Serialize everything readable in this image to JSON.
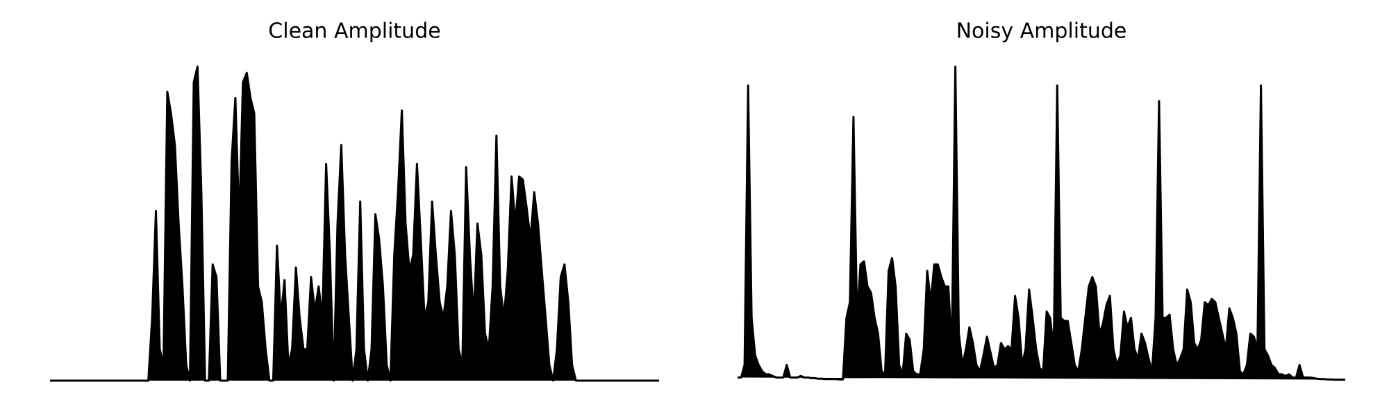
{
  "chart_data": [
    {
      "type": "area",
      "title": "Clean Amplitude",
      "color": "#000000",
      "values": [
        0,
        0,
        0,
        0,
        0,
        0,
        0,
        0,
        0,
        0,
        0,
        0,
        0,
        0,
        0,
        0,
        0,
        0,
        0,
        0,
        0,
        0,
        0,
        0,
        0,
        0,
        0,
        0.2,
        0.54,
        0.1,
        0.05,
        0.92,
        0.85,
        0.75,
        0.5,
        0.3,
        0.05,
        0,
        0.95,
        1.0,
        0.6,
        0,
        0,
        0.37,
        0.33,
        0,
        0,
        0,
        0.7,
        0.9,
        0.5,
        0.95,
        0.98,
        0.9,
        0.85,
        0.3,
        0.25,
        0.1,
        0,
        0,
        0.43,
        0.2,
        0.32,
        0.05,
        0.1,
        0.36,
        0.2,
        0.1,
        0.1,
        0.33,
        0.22,
        0.3,
        0.2,
        0.69,
        0.4,
        0,
        0.5,
        0.75,
        0.4,
        0.2,
        0,
        0.1,
        0.57,
        0.1,
        0,
        0.1,
        0.53,
        0.45,
        0.3,
        0.05,
        0,
        0.4,
        0.6,
        0.86,
        0.5,
        0.35,
        0.4,
        0.69,
        0.45,
        0.2,
        0.25,
        0.57,
        0.4,
        0.25,
        0.2,
        0.3,
        0.54,
        0.4,
        0.1,
        0.05,
        0.68,
        0.4,
        0.2,
        0.5,
        0.4,
        0.15,
        0.1,
        0.3,
        0.78,
        0.3,
        0.2,
        0.35,
        0.65,
        0.5,
        0.65,
        0.64,
        0.55,
        0.45,
        0.6,
        0.5,
        0.35,
        0.2,
        0.05,
        0,
        0.1,
        0.33,
        0.37,
        0.25,
        0.05,
        0,
        0,
        0,
        0,
        0,
        0,
        0,
        0,
        0,
        0,
        0,
        0,
        0,
        0,
        0,
        0,
        0,
        0,
        0,
        0,
        0,
        0,
        0
      ]
    },
    {
      "type": "area",
      "title": "Noisy Amplitude",
      "color": "#000000",
      "values": [
        0.01,
        0.01,
        0.05,
        0.94,
        0.2,
        0.08,
        0.05,
        0.03,
        0.02,
        0.02,
        0.015,
        0.01,
        0.01,
        0.01,
        0.05,
        0.01,
        0.01,
        0.01,
        0.015,
        0.01,
        0.01,
        0.008,
        0.008,
        0.006,
        0.006,
        0.005,
        0.005,
        0.005,
        0.005,
        0.004,
        0.004,
        0.2,
        0.25,
        0.84,
        0.2,
        0.37,
        0.38,
        0.3,
        0.28,
        0.2,
        0.15,
        0.03,
        0.02,
        0.35,
        0.39,
        0.3,
        0.05,
        0.02,
        0.15,
        0.13,
        0.03,
        0.02,
        0.02,
        0.1,
        0.35,
        0.25,
        0.37,
        0.37,
        0.33,
        0.3,
        0.3,
        0.1,
        1.0,
        0.15,
        0.05,
        0.1,
        0.17,
        0.12,
        0.05,
        0.03,
        0.08,
        0.14,
        0.09,
        0.04,
        0.05,
        0.12,
        0.1,
        0.11,
        0.1,
        0.27,
        0.2,
        0.05,
        0.1,
        0.29,
        0.2,
        0.1,
        0.04,
        0.03,
        0.22,
        0.2,
        0.1,
        0.94,
        0.2,
        0.19,
        0.19,
        0.12,
        0.05,
        0.03,
        0.1,
        0.2,
        0.3,
        0.33,
        0.3,
        0.15,
        0.18,
        0.24,
        0.27,
        0.1,
        0.05,
        0.08,
        0.22,
        0.17,
        0.2,
        0.1,
        0.07,
        0.15,
        0.12,
        0.07,
        0.03,
        0.2,
        0.89,
        0.2,
        0.2,
        0.21,
        0.1,
        0.05,
        0.07,
        0.1,
        0.29,
        0.25,
        0.12,
        0.1,
        0.13,
        0.25,
        0.24,
        0.26,
        0.25,
        0.2,
        0.15,
        0.1,
        0.23,
        0.2,
        0.15,
        0.03,
        0.02,
        0.05,
        0.15,
        0.14,
        0.1,
        0.94,
        0.1,
        0.08,
        0.05,
        0.04,
        0.02,
        0.02,
        0.015,
        0.02,
        0.01,
        0.01,
        0.05,
        0.01,
        0.01,
        0.01,
        0.008,
        0.006,
        0.005,
        0.005,
        0.004,
        0.004,
        0.003,
        0.003,
        0.003,
        0.003
      ]
    }
  ]
}
